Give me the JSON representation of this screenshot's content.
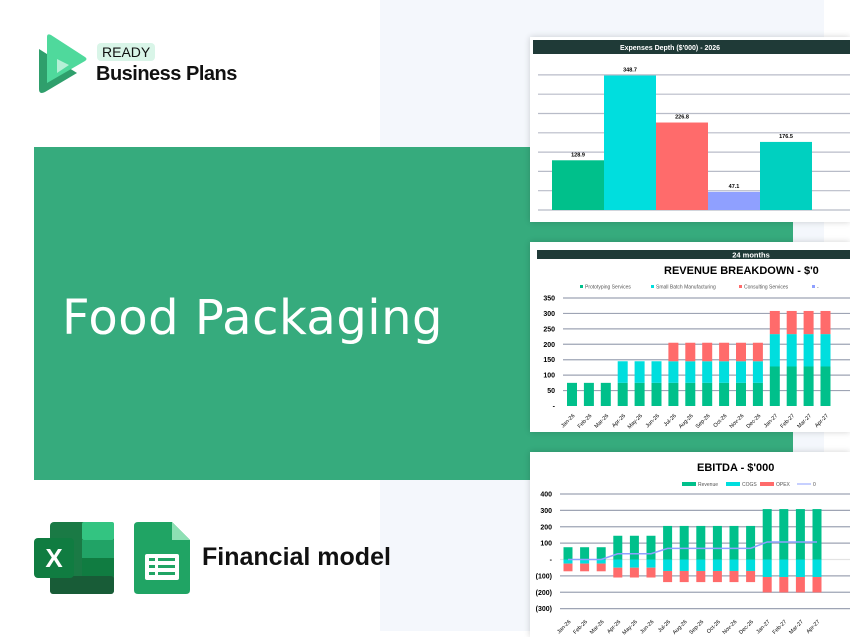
{
  "brand": {
    "badge": "READY",
    "name": "Business Plans"
  },
  "hero": {
    "title": "Food Packaging"
  },
  "footer": {
    "label": "Financial model",
    "icons": [
      "excel-icon",
      "google-sheets-icon"
    ]
  },
  "colors": {
    "banner": "#36ab7d",
    "green": "#00c08b",
    "cyan": "#00dede",
    "red": "#ff6b6b",
    "lavender": "#8fa0ff",
    "teal": "#00d0c0",
    "header": "#1f3a37"
  },
  "chart_data": [
    {
      "type": "bar",
      "title": "Expenses Depth ($'000) - 2026",
      "categories": [
        "",
        "",
        "",
        "",
        ""
      ],
      "values": [
        128.9,
        348.7,
        226.8,
        47.1,
        176.5
      ],
      "value_labels": [
        "128.9",
        "348.7",
        "226.8",
        "47.1",
        "176.5"
      ],
      "bar_colors": [
        "#00c08b",
        "#00dede",
        "#ff6b6b",
        "#8fa0ff",
        "#00d0c0"
      ],
      "ylim": [
        0,
        350
      ],
      "grid": true
    },
    {
      "type": "bar",
      "stacked": true,
      "header": "24 months",
      "title": "REVENUE BREAKDOWN - $'0",
      "legend_position": "top",
      "categories": [
        "Jan-26",
        "Feb-26",
        "Mar-26",
        "Apr-26",
        "May-26",
        "Jun-26",
        "Jul-26",
        "Aug-26",
        "Sep-26",
        "Oct-26",
        "Nov-26",
        "Dec-26",
        "Jan-27",
        "Feb-27",
        "Mar-27",
        "Apr-27"
      ],
      "series": [
        {
          "name": "Prototyping Services",
          "color": "#00c08b",
          "values": [
            75,
            75,
            75,
            75,
            75,
            75,
            75,
            75,
            75,
            75,
            75,
            75,
            128,
            128,
            128,
            128
          ]
        },
        {
          "name": "Small Batch Manufacturing",
          "color": "#00dede",
          "values": [
            0,
            0,
            0,
            70,
            70,
            70,
            70,
            70,
            70,
            70,
            70,
            70,
            105,
            105,
            105,
            105
          ]
        },
        {
          "name": "Consulting Services",
          "color": "#ff6b6b",
          "values": [
            0,
            0,
            0,
            0,
            0,
            0,
            60,
            60,
            60,
            60,
            60,
            60,
            75,
            75,
            75,
            75
          ]
        },
        {
          "name": "-",
          "color": "#8fa0ff",
          "values": [
            0,
            0,
            0,
            0,
            0,
            0,
            0,
            0,
            0,
            0,
            0,
            0,
            0,
            0,
            0,
            0
          ]
        }
      ],
      "yticks": [
        "350",
        "300",
        "250",
        "200",
        "150",
        "100",
        "50",
        "-"
      ],
      "ylim": [
        0,
        350
      ],
      "grid": true
    },
    {
      "type": "bar",
      "stacked": true,
      "title": "EBITDA - $'000",
      "legend_position": "top-right",
      "categories": [
        "Jan-26",
        "Feb-26",
        "Mar-26",
        "Apr-26",
        "May-26",
        "Jun-26",
        "Jul-26",
        "Aug-26",
        "Sep-26",
        "Oct-26",
        "Nov-26",
        "Dec-26",
        "Jan-27",
        "Feb-27",
        "Mar-27",
        "Apr-27"
      ],
      "series": [
        {
          "name": "Revenue",
          "color": "#00c08b",
          "values": [
            75,
            75,
            75,
            145,
            145,
            145,
            205,
            205,
            205,
            205,
            205,
            205,
            308,
            308,
            308,
            308
          ]
        },
        {
          "name": "COGS",
          "color": "#00dede",
          "values": [
            -25,
            -25,
            -25,
            -50,
            -50,
            -50,
            -70,
            -70,
            -70,
            -70,
            -70,
            -70,
            -107,
            -107,
            -107,
            -107
          ]
        },
        {
          "name": "OPEX",
          "color": "#ff6b6b",
          "values": [
            -47,
            -47,
            -47,
            -60,
            -60,
            -60,
            -68,
            -68,
            -68,
            -68,
            -68,
            -68,
            -94,
            -94,
            -94,
            -94
          ]
        },
        {
          "name": "0",
          "color": "#8fa0ff",
          "kind": "line",
          "values": [
            0,
            0,
            0,
            35,
            35,
            35,
            68,
            68,
            68,
            68,
            68,
            68,
            107,
            107,
            107,
            107
          ]
        }
      ],
      "yticks": [
        "400",
        "300",
        "200",
        "100",
        "-",
        "(100)",
        "(200)",
        "(300)"
      ],
      "ylim": [
        -300,
        400
      ],
      "grid": true
    }
  ]
}
